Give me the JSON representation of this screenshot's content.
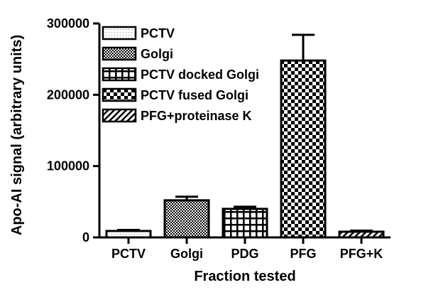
{
  "chart_data": {
    "type": "bar",
    "xlabel": "Fraction tested",
    "ylabel": "Apo-AI signal (arbitrary units)",
    "categories": [
      "PCTV",
      "Golgi",
      "PDG",
      "PFG",
      "PFG+K"
    ],
    "values": [
      9000,
      52000,
      40000,
      248000,
      8000
    ],
    "errors": [
      1500,
      5000,
      3000,
      36000,
      1500
    ],
    "patterns": [
      "dotted",
      "checker-fine",
      "grid",
      "checker-coarse",
      "hatch"
    ],
    "ylim": [
      0,
      300000
    ],
    "yticks": [
      0,
      100000,
      200000,
      300000
    ],
    "ytick_labels": [
      "0",
      "100000",
      "200000",
      "300000"
    ],
    "legend": {
      "placement": "top-left",
      "entries": [
        {
          "label": "PCTV",
          "pattern": "dotted"
        },
        {
          "label": "Golgi",
          "pattern": "checker-fine"
        },
        {
          "label": "PCTV docked Golgi",
          "pattern": "grid"
        },
        {
          "label": "PCTV fused Golgi",
          "pattern": "checker-coarse"
        },
        {
          "label": "PFG+proteinase K",
          "pattern": "hatch"
        }
      ]
    },
    "grid": false
  }
}
